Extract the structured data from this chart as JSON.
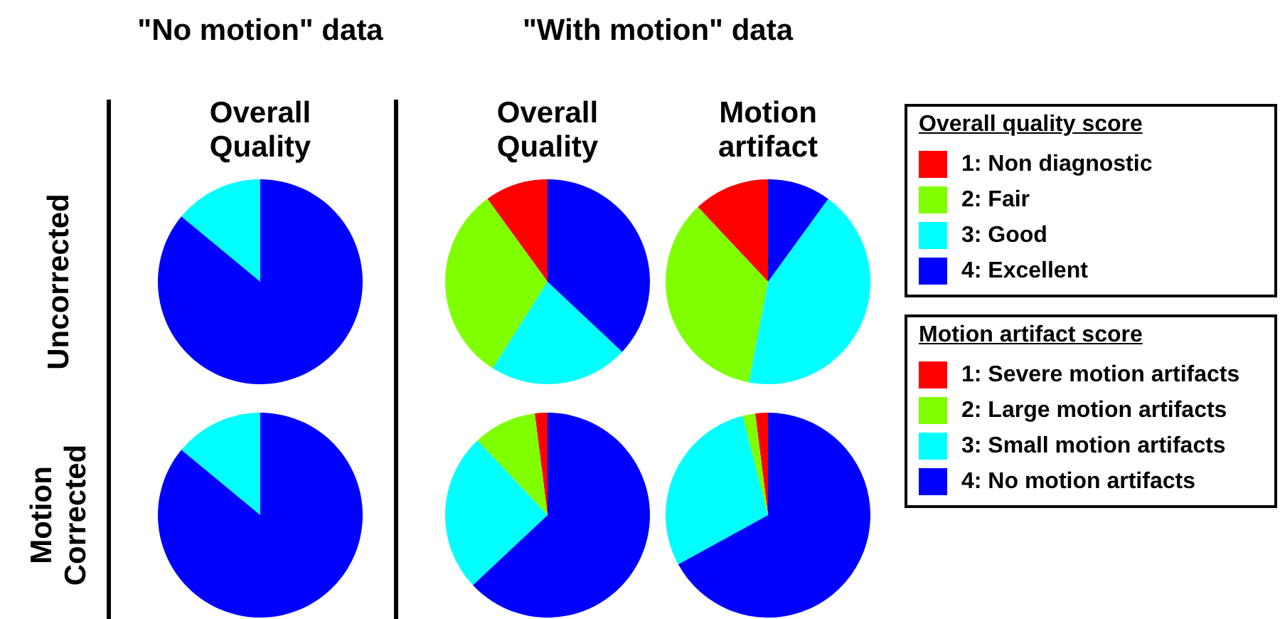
{
  "chart_data": [
    {
      "type": "pie",
      "title": "Overall Quality",
      "subtitle": "\"No motion\" data",
      "ylabel": "Uncorrected",
      "legend": "right",
      "legend_title": "Overall quality score",
      "categories": [
        "1: Non diagnostic",
        "2: Fair",
        "3: Good",
        "4: Excellent"
      ],
      "values": [
        0,
        0,
        14,
        86
      ],
      "colors": [
        "#ff0000",
        "#80ff00",
        "#00ffff",
        "#0000ff"
      ]
    },
    {
      "type": "pie",
      "title": "Overall Quality",
      "subtitle": "\"With motion\" data",
      "categories": [
        null,
        null,
        null,
        null
      ],
      "values": [
        10,
        31,
        22,
        37
      ],
      "colors": [
        "#ff0000",
        "#80ff00",
        "#00ffff",
        "#0000ff"
      ]
    },
    {
      "type": "pie",
      "title": "Motion artifact",
      "legend": "right",
      "legend_title": "Motion artifact score",
      "categories": [
        "1: Severe motion artifacts",
        "2: Large motion artifacts",
        "3: Small motion artifacts",
        "4: No motion artifacts"
      ],
      "values": [
        12,
        35,
        43,
        10
      ],
      "colors": [
        "#ff0000",
        "#80ff00",
        "#00ffff",
        "#0000ff"
      ]
    },
    {
      "type": "pie",
      "ylabel": "Motion Corrected",
      "categories": [
        null,
        null,
        null,
        null
      ],
      "values": [
        0,
        0,
        14,
        86
      ],
      "colors": [
        "#ff0000",
        "#80ff00",
        "#00ffff",
        "#0000ff"
      ]
    },
    {
      "type": "pie",
      "categories": [
        null,
        null,
        null,
        null
      ],
      "values": [
        2,
        10,
        25,
        63
      ],
      "colors": [
        "#ff0000",
        "#80ff00",
        "#00ffff",
        "#0000ff"
      ]
    },
    {
      "type": "pie",
      "categories": [
        null,
        null,
        null,
        null
      ],
      "values": [
        2,
        2,
        29,
        67
      ],
      "colors": [
        "#ff0000",
        "#80ff00",
        "#00ffff",
        "#0000ff"
      ]
    }
  ]
}
